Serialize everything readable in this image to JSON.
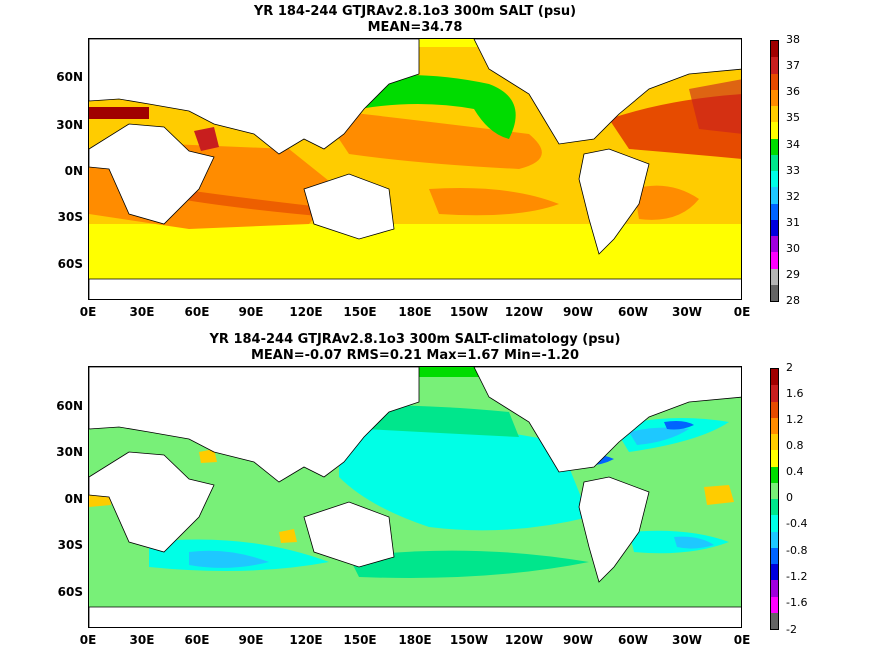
{
  "panels": [
    {
      "title_line1": "YR 184-244 GTJRAv2.8.1o3 300m SALT (psu)",
      "title_line2": "MEAN=34.78",
      "lat_labels": [
        "60N",
        "30N",
        "0N",
        "30S",
        "60S"
      ],
      "lon_labels": [
        "0E",
        "30E",
        "60E",
        "90E",
        "120E",
        "150E",
        "180E",
        "150W",
        "120W",
        "90W",
        "60W",
        "30W",
        "0E"
      ],
      "colorbar_labels": [
        "38",
        "37",
        "36",
        "35",
        "34",
        "33",
        "32",
        "31",
        "30",
        "29",
        "28"
      ],
      "colorbar_colors": [
        "#a00000",
        "#c81e1e",
        "#e64b00",
        "#ff8c00",
        "#ffcc00",
        "#ffff00",
        "#00dc00",
        "#00e68c",
        "#00ffe6",
        "#1ec8ff",
        "#0064ff",
        "#0000dc",
        "#a000dc",
        "#ff00ff",
        "#b4b4b4",
        "#646464"
      ]
    },
    {
      "title_line1": "YR 184-244 GTJRAv2.8.1o3 300m SALT-climatology (psu)",
      "title_line2": "MEAN=-0.07   RMS=0.21   Max=1.67   Min=-1.20",
      "lat_labels": [
        "60N",
        "30N",
        "0N",
        "30S",
        "60S"
      ],
      "lon_labels": [
        "0E",
        "30E",
        "60E",
        "90E",
        "120E",
        "150E",
        "180E",
        "150W",
        "120W",
        "90W",
        "60W",
        "30W",
        "0E"
      ],
      "colorbar_labels": [
        "2",
        "1.6",
        "1.2",
        "0.8",
        "0.4",
        "0",
        "-0.4",
        "-0.8",
        "-1.2",
        "-1.6",
        "-2"
      ],
      "colorbar_colors": [
        "#a00000",
        "#c81e1e",
        "#e64b00",
        "#ff8c00",
        "#ffcc00",
        "#ffff00",
        "#00dc00",
        "#78f078",
        "#00e68c",
        "#00ffe6",
        "#1ec8ff",
        "#0064ff",
        "#0000dc",
        "#a000dc",
        "#ff00ff",
        "#646464"
      ]
    }
  ]
}
